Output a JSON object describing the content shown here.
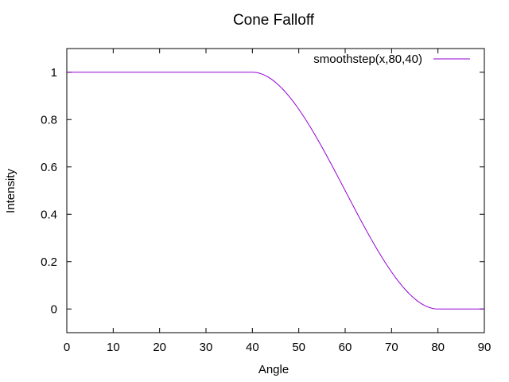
{
  "chart_data": {
    "type": "line",
    "title": "Cone Falloff",
    "xlabel": "Angle",
    "ylabel": "Intensity",
    "xlim": [
      0,
      90
    ],
    "ylim": [
      -0.1,
      1.1
    ],
    "xticks": [
      0,
      10,
      20,
      30,
      40,
      50,
      60,
      70,
      80,
      90
    ],
    "yticks": [
      0,
      0.2,
      0.4,
      0.6,
      0.8,
      1
    ],
    "grid": false,
    "legend_position": "top-right",
    "series": [
      {
        "name": "smoothstep(x,80,40)",
        "color": "#9400d3",
        "function": "smoothstep",
        "edge0": 80,
        "edge1": 40,
        "x_start": 0,
        "x_end": 90,
        "samples": 181
      }
    ]
  }
}
